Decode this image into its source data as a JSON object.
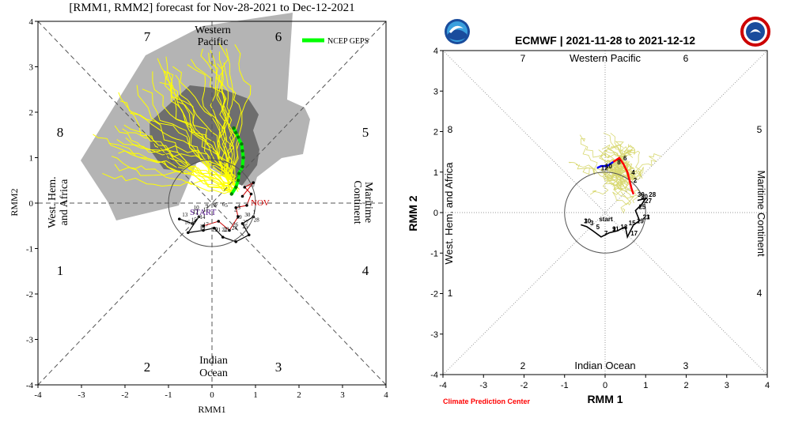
{
  "chart_data": [
    {
      "type": "line",
      "title": "[RMM1, RMM2] forecast for Nov-28-2021 to Dec-12-2021",
      "xlabel": "RMM1",
      "ylabel": "RMM2",
      "xlim": [
        -4,
        4
      ],
      "ylim": [
        -4,
        4
      ],
      "xticks": [
        "-4",
        "-3",
        "-2",
        "-1",
        "0",
        "1",
        "2",
        "3",
        "4"
      ],
      "yticks": [
        "-4",
        "-3",
        "-2",
        "-1",
        "0",
        "1",
        "2",
        "3",
        "4"
      ],
      "phase_numbers": [
        "1",
        "2",
        "3",
        "4",
        "5",
        "6",
        "7",
        "8"
      ],
      "region_labels": {
        "top": [
          "Western",
          "Pacific"
        ],
        "bottom": [
          "Indian",
          "Ocean"
        ],
        "left": [
          "West. Hem.",
          "and Africa"
        ],
        "right": [
          "Maritime",
          "Continent"
        ]
      },
      "legend": {
        "label": "NCEP GEPS",
        "color": "#00ff00",
        "placement": "top-right"
      },
      "observed_labels": {
        "start": "START",
        "month": "NOV"
      },
      "observed_day_labels": [
        "29",
        "30",
        "1",
        "2",
        "3",
        "4",
        "5",
        "6",
        "7",
        "8",
        "9",
        "10",
        "11",
        "12",
        "13",
        "14",
        "15",
        "16",
        "17",
        "18",
        "19",
        "20",
        "21",
        "22",
        "23",
        "24",
        "25",
        "26",
        "27",
        "28"
      ],
      "ensemble_mean": {
        "color": "#00ff00",
        "x": [
          0.45,
          0.55,
          0.6,
          0.62,
          0.7,
          0.72,
          0.7,
          0.68,
          0.6,
          0.55,
          0.5
        ],
        "y": [
          0.2,
          0.35,
          0.5,
          0.65,
          0.8,
          1.0,
          1.15,
          1.3,
          1.45,
          1.55,
          1.65
        ]
      },
      "colors": {
        "spread_outer": "#b4b4b4",
        "spread_inner": "#6e6e6e",
        "members": "#ffff00",
        "observed": "#000000",
        "observed_path": "#cc0000"
      }
    },
    {
      "type": "line",
      "title": "ECMWF | 2021-11-28 to 2021-12-12",
      "xlabel": "RMM 1",
      "ylabel": "RMM 2",
      "xlim": [
        -4,
        4
      ],
      "ylim": [
        -4,
        4
      ],
      "xticks": [
        "-4",
        "-3",
        "-2",
        "-1",
        "0",
        "1",
        "2",
        "3",
        "4"
      ],
      "yticks": [
        "-4",
        "-3",
        "-2",
        "-1",
        "0",
        "1",
        "2",
        "3",
        "4"
      ],
      "phase_numbers": [
        "1",
        "2",
        "3",
        "4",
        "5",
        "6",
        "7",
        "8"
      ],
      "region_labels": {
        "top": "Western Pacific",
        "bottom": "Indian Ocean",
        "left": "West. Hem. and Africa",
        "right": "Maritime Continent"
      },
      "credit": "Climate Prediction Center",
      "observed_start_label": "start",
      "observed_day_labels": [
        "30",
        "1",
        "3",
        "5",
        "7",
        "9",
        "11",
        "13",
        "15",
        "17",
        "19",
        "21",
        "23",
        "25",
        "27",
        "28",
        "30"
      ],
      "forecast_mean": {
        "x": [
          0.7,
          0.65,
          0.6,
          0.55,
          0.45,
          0.35,
          0.2,
          0.05,
          -0.1,
          -0.2
        ],
        "y": [
          0.45,
          0.6,
          0.8,
          1.0,
          1.2,
          1.35,
          1.25,
          1.15,
          1.15,
          1.1
        ]
      },
      "forecast_day_labels": [
        "30",
        "2",
        "4",
        "6",
        "8",
        "10",
        "12"
      ],
      "colors": {
        "members": "#d8d870",
        "observed": "#000000",
        "forecast_early": "#ff0000",
        "forecast_late": "#0000ff"
      }
    }
  ],
  "logos": {
    "left": "noaa-logo-icon",
    "right": "nws-logo-icon"
  }
}
